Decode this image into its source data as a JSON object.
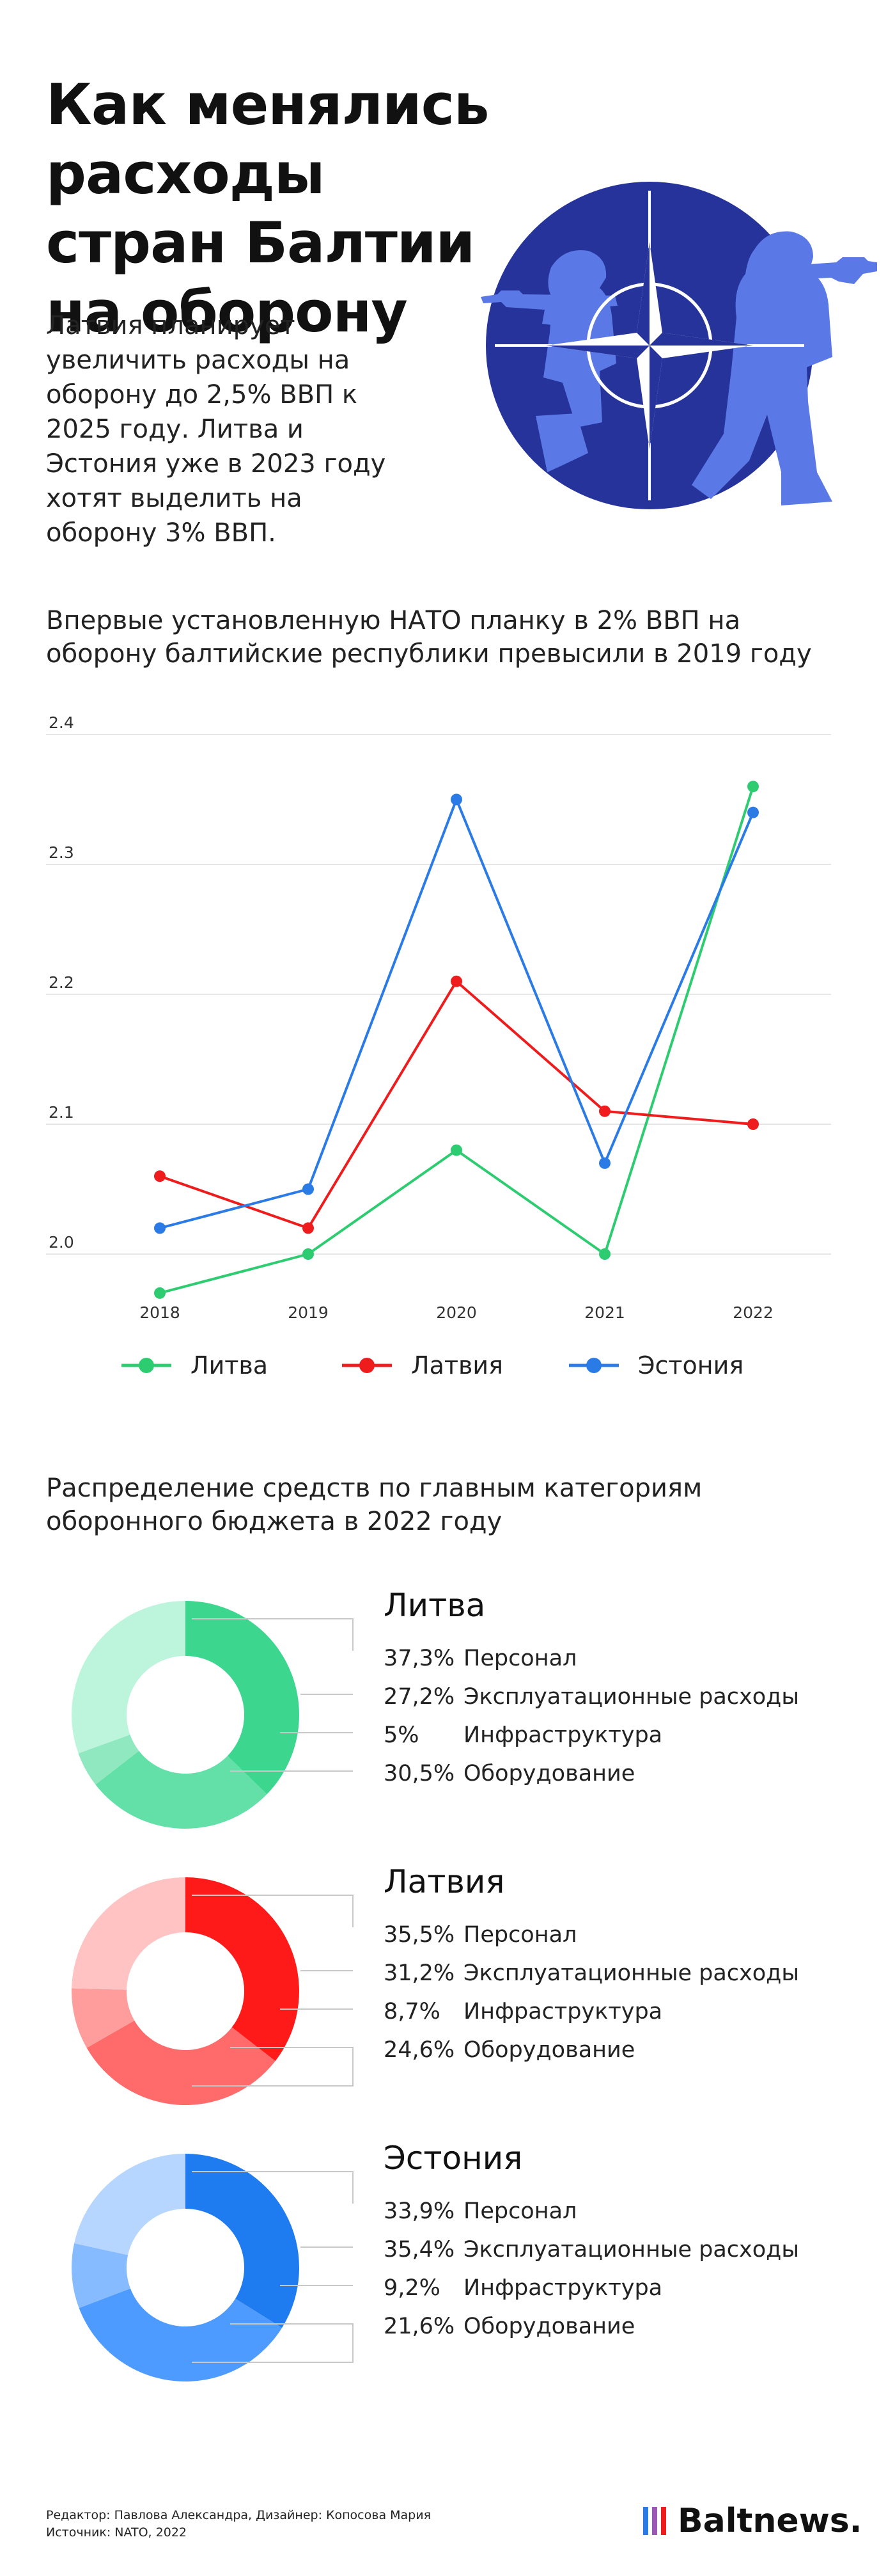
{
  "header": {
    "title_lines": [
      "Как менялись расходы",
      "стран Балтии",
      "на оборону"
    ],
    "intro_lines": [
      "Латвия планирует",
      "увеличить расходы на",
      "оборону до 2,5% ВВП к",
      "2025 году. Литва и",
      "Эстония уже в 2023 году",
      "хотят выделить на",
      "оборону 3% ВВП."
    ]
  },
  "emblem": {
    "icon": "nato-compass-star-with-soldiers",
    "colors": {
      "circle": "#26339a",
      "soldiers": "#5b79e6",
      "star": "#ffffff"
    }
  },
  "line_chart_title_lines": [
    "Впервые установленную НАТО планку в 2% ВВП на",
    "оборону балтийские республики превысили в 2019 году"
  ],
  "donut_section_title_lines": [
    "Распределение средств по главным категориям",
    "оборонного бюджета в 2022 году"
  ],
  "chart_data": [
    {
      "type": "line",
      "x": [
        "2018",
        "2019",
        "2020",
        "2021",
        "2022"
      ],
      "yticks": [
        "2.0",
        "2.1",
        "2.2",
        "2.3",
        "2.4"
      ],
      "ylim": [
        2.0,
        2.4
      ],
      "grid": true,
      "legend_position": "bottom",
      "series": [
        {
          "name": "Литва",
          "color": "#2ecc71",
          "values": [
            1.97,
            2.0,
            2.08,
            2.0,
            2.36
          ]
        },
        {
          "name": "Латвия",
          "color": "#ee1c1c",
          "values": [
            2.06,
            2.02,
            2.21,
            2.11,
            2.1
          ]
        },
        {
          "name": "Эстония",
          "color": "#2b7be6",
          "values": [
            2.02,
            2.05,
            2.35,
            2.07,
            2.34
          ]
        }
      ]
    },
    {
      "type": "pie",
      "name": "Литва",
      "labels": [
        "Персонал",
        "Эксплуатационные расходы",
        "Инфраструктура",
        "Оборудование"
      ],
      "value_labels": [
        "37,3%",
        "27,2%",
        "5%",
        "30,5%"
      ],
      "values": [
        37.3,
        27.2,
        5.0,
        30.5
      ],
      "colors": [
        "#3dd68f",
        "#63e0a7",
        "#8fe8c0",
        "#bdf5dc"
      ]
    },
    {
      "type": "pie",
      "name": "Латвия",
      "labels": [
        "Персонал",
        "Эксплуатационные расходы",
        "Инфраструктура",
        "Оборудование"
      ],
      "value_labels": [
        "35,5%",
        "31,2%",
        "8,7%",
        "24,6%"
      ],
      "values": [
        35.5,
        31.2,
        8.7,
        24.6
      ],
      "colors": [
        "#ff1a1a",
        "#ff6a6a",
        "#ff9d9d",
        "#ffc3c3"
      ]
    },
    {
      "type": "pie",
      "name": "Эстония",
      "labels": [
        "Персонал",
        "Эксплуатационные расходы",
        "Инфраструктура",
        "Оборудование"
      ],
      "value_labels": [
        "33,9%",
        "35,4%",
        "9,2%",
        "21,6%"
      ],
      "values": [
        33.9,
        35.4,
        9.2,
        21.6
      ],
      "colors": [
        "#1f7bf0",
        "#4d9bff",
        "#86bcff",
        "#b6d6ff"
      ]
    }
  ],
  "footer": {
    "credit_lines": [
      "Редактор: Павлова Александра, Дизайнер: Копосова Мария",
      "Источник: NATO, 2022"
    ],
    "brand": "Baltnews.",
    "brand_icon": "baltnews-bars-logo",
    "brand_bar_colors": [
      "#2b7be6",
      "#9b59b6",
      "#ee1c1c"
    ]
  }
}
